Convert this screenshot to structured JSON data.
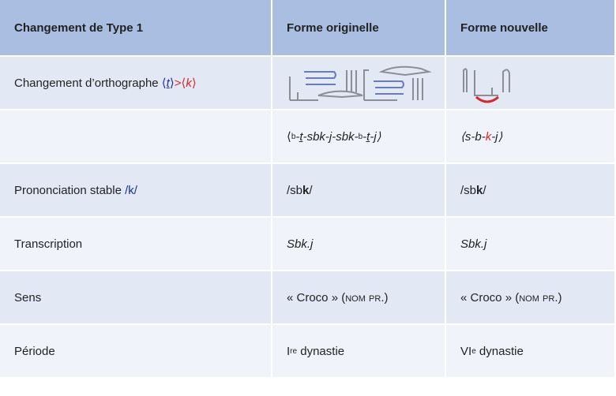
{
  "table": {
    "header": [
      "Changement de Type 1",
      "Forme originelle",
      "Forme nouvelle"
    ],
    "rows": [
      {
        "label": [
          "Changement d’orthographe ",
          "⟨",
          "t",
          "⟩",
          ">⟨",
          "k",
          "⟩"
        ]
      },
      {
        "original": [
          "⟨",
          "b",
          "-ṯ-sbk-j-sbk-",
          "b",
          "-ṯ-j⟩"
        ],
        "new": [
          "⟨s-b-",
          "k",
          "-j⟩"
        ]
      },
      {
        "label": [
          "Prononciation stable ",
          "/k/"
        ],
        "original": [
          "/sb",
          "k",
          "/"
        ],
        "new": [
          "/sb",
          "k",
          "/"
        ]
      },
      {
        "label": [
          "Transcription"
        ],
        "original": [
          "Sbk.j"
        ],
        "new": [
          "Sbk.j"
        ]
      },
      {
        "label": [
          "Sens"
        ],
        "original": [
          "« Croco » (",
          "nom pr.",
          ")"
        ],
        "new": [
          "« Croco » (",
          "nom pr.",
          ")"
        ]
      },
      {
        "label": [
          "Période"
        ],
        "original": [
          "I",
          "re",
          " dynastie"
        ],
        "new": [
          "VI",
          "e",
          " dynastie"
        ]
      }
    ]
  }
}
